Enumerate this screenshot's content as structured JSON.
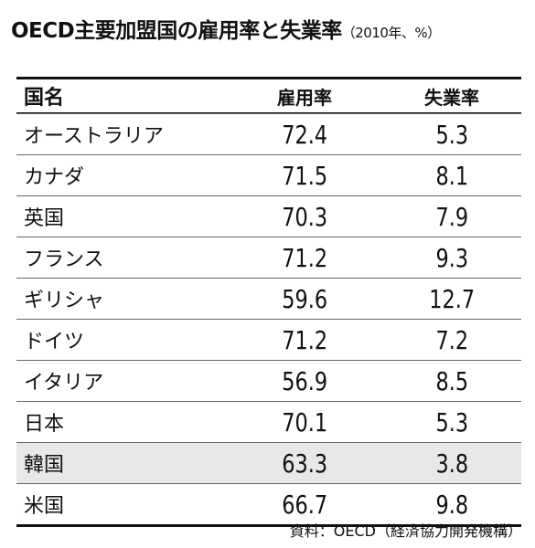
{
  "header": {
    "title": "OECD主要加盟国の雇用率と失業率",
    "subtitle": "（2010年、%）"
  },
  "table": {
    "columns": [
      "国名",
      "雇用率",
      "失業率"
    ],
    "rows": [
      [
        "オーストラリア",
        72.4,
        5.3
      ],
      [
        "カナダ",
        71.5,
        8.1
      ],
      [
        "英国",
        70.3,
        7.9
      ],
      [
        "フランス",
        71.2,
        9.3
      ],
      [
        "ギリシャ",
        59.6,
        12.7
      ],
      [
        "ドイツ",
        71.2,
        7.2
      ],
      [
        "イタリア",
        56.9,
        8.5
      ],
      [
        "日本",
        70.1,
        5.3
      ],
      [
        "韓国",
        63.3,
        3.8
      ],
      [
        "米国",
        66.7,
        9.8
      ]
    ]
  },
  "footer": {
    "source": "資料：OECD（経済協力開発機構）"
  }
}
